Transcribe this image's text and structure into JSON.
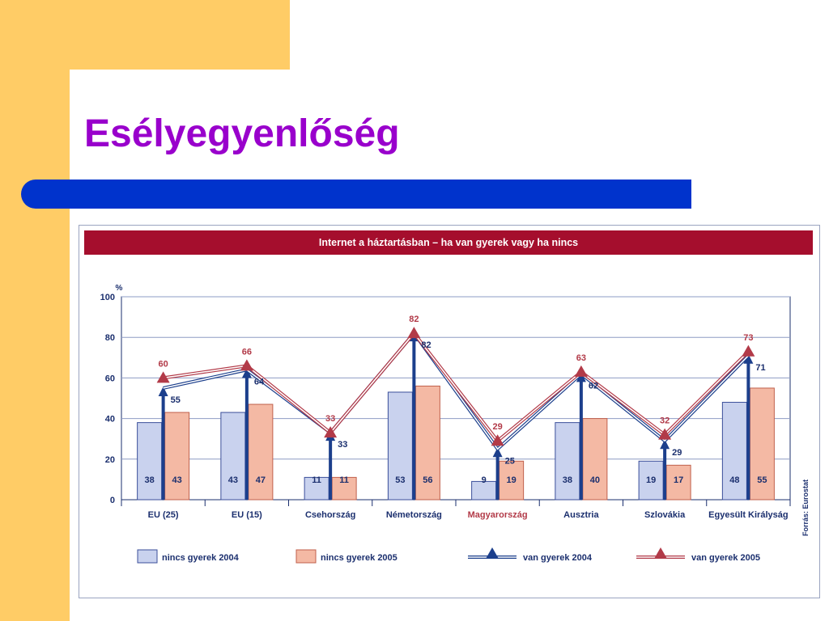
{
  "slide": {
    "title": "Esélyegyenlőség"
  },
  "chart_data": {
    "type": "bar",
    "title": "Internet a háztartásban – ha van gyerek vagy ha nincs",
    "ylabel": "%",
    "ylim": [
      0,
      100
    ],
    "yticks": [
      0,
      20,
      40,
      60,
      80,
      100
    ],
    "grid": true,
    "legend_position": "bottom",
    "source": "Forrás: Eurostat",
    "categories": [
      "EU (25)",
      "EU (15)",
      "Csehország",
      "Németország",
      "Magyarország",
      "Ausztria",
      "Szlovákia",
      "Egyesült Királyság"
    ],
    "highlight_category": "Magyarország",
    "series": [
      {
        "name": "nincs gyerek 2004",
        "kind": "bar",
        "values": [
          38,
          43,
          11,
          53,
          9,
          38,
          19,
          48
        ],
        "color": "#c9d2ee"
      },
      {
        "name": "nincs gyerek 2005",
        "kind": "bar",
        "values": [
          43,
          47,
          11,
          56,
          19,
          40,
          17,
          55
        ],
        "color": "#f4b9a4"
      },
      {
        "name": "van gyerek 2004",
        "kind": "line",
        "values": [
          55,
          64,
          33,
          82,
          25,
          62,
          29,
          71
        ],
        "color": "#1c3f8c"
      },
      {
        "name": "van gyerek 2005",
        "kind": "line",
        "values": [
          60,
          66,
          33,
          82,
          29,
          63,
          32,
          73
        ],
        "color": "#b23a48"
      }
    ]
  },
  "colors": {
    "title": "#9900cc",
    "accent_bar": "#0033cc",
    "side_panel": "#ffcc66",
    "chart_header": "#a50e2d",
    "axis_text": "#1b2f6e"
  }
}
